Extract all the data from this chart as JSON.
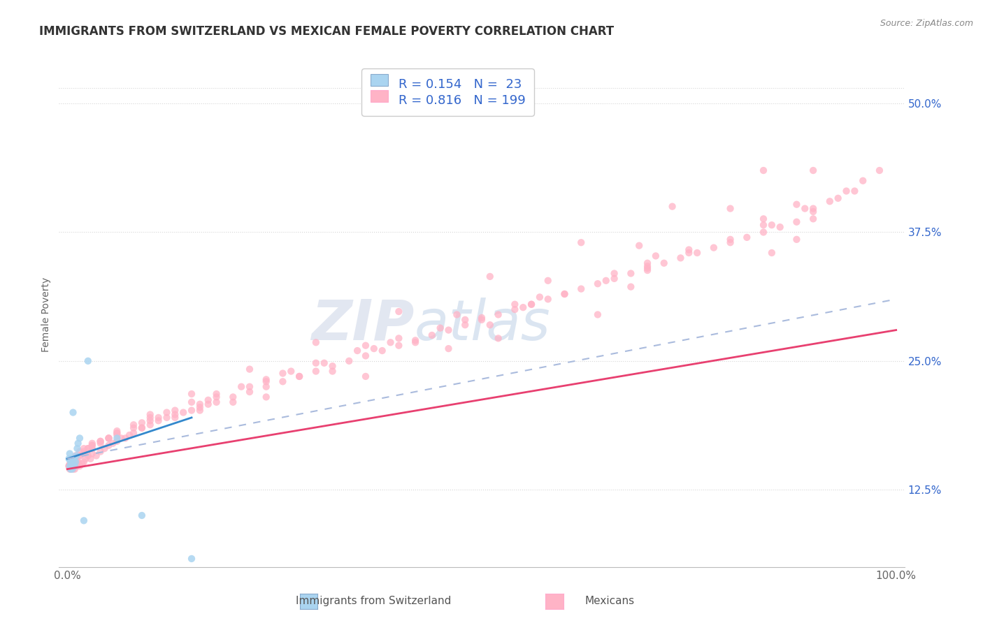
{
  "title": "IMMIGRANTS FROM SWITZERLAND VS MEXICAN FEMALE POVERTY CORRELATION CHART",
  "source": "Source: ZipAtlas.com",
  "ylabel": "Female Poverty",
  "watermark_zip": "ZIP",
  "watermark_atlas": "atlas",
  "legend_r1": "R = 0.154",
  "legend_n1": "N =  23",
  "legend_r2": "R = 0.816",
  "legend_n2": "N = 199",
  "legend_label1": "Immigrants from Switzerland",
  "legend_label2": "Mexicans",
  "yticks": [
    0.125,
    0.25,
    0.375,
    0.5
  ],
  "ytick_labels": [
    "12.5%",
    "25.0%",
    "37.5%",
    "50.0%"
  ],
  "grid_color": "#cccccc",
  "stat_color": "#3366cc",
  "background": "#ffffff",
  "swiss_x": [
    0.002,
    0.003,
    0.003,
    0.004,
    0.004,
    0.005,
    0.005,
    0.006,
    0.006,
    0.007,
    0.007,
    0.008,
    0.009,
    0.01,
    0.011,
    0.012,
    0.013,
    0.015,
    0.02,
    0.025,
    0.06,
    0.09,
    0.15
  ],
  "swiss_y": [
    0.155,
    0.148,
    0.16,
    0.145,
    0.152,
    0.155,
    0.148,
    0.152,
    0.145,
    0.15,
    0.2,
    0.155,
    0.148,
    0.152,
    0.158,
    0.165,
    0.17,
    0.175,
    0.095,
    0.25,
    0.175,
    0.1,
    0.058
  ],
  "mexican_x": [
    0.002,
    0.003,
    0.004,
    0.005,
    0.005,
    0.006,
    0.007,
    0.008,
    0.009,
    0.01,
    0.012,
    0.013,
    0.015,
    0.018,
    0.02,
    0.022,
    0.025,
    0.028,
    0.03,
    0.035,
    0.04,
    0.045,
    0.05,
    0.055,
    0.06,
    0.065,
    0.07,
    0.075,
    0.08,
    0.09,
    0.1,
    0.11,
    0.12,
    0.13,
    0.14,
    0.15,
    0.16,
    0.17,
    0.18,
    0.2,
    0.22,
    0.24,
    0.26,
    0.28,
    0.3,
    0.32,
    0.34,
    0.36,
    0.38,
    0.4,
    0.42,
    0.44,
    0.46,
    0.48,
    0.5,
    0.52,
    0.54,
    0.56,
    0.58,
    0.6,
    0.62,
    0.64,
    0.66,
    0.68,
    0.7,
    0.72,
    0.74,
    0.76,
    0.78,
    0.8,
    0.82,
    0.84,
    0.86,
    0.88,
    0.9,
    0.92,
    0.94,
    0.96,
    0.98,
    0.002,
    0.003,
    0.004,
    0.005,
    0.006,
    0.007,
    0.008,
    0.01,
    0.012,
    0.015,
    0.02,
    0.025,
    0.03,
    0.04,
    0.05,
    0.06,
    0.08,
    0.1,
    0.12,
    0.15,
    0.18,
    0.21,
    0.24,
    0.27,
    0.3,
    0.35,
    0.4,
    0.45,
    0.5,
    0.55,
    0.6,
    0.65,
    0.7,
    0.75,
    0.8,
    0.85,
    0.9,
    0.95,
    0.003,
    0.008,
    0.015,
    0.025,
    0.04,
    0.06,
    0.09,
    0.13,
    0.18,
    0.24,
    0.31,
    0.39,
    0.48,
    0.57,
    0.66,
    0.75,
    0.84,
    0.93,
    0.004,
    0.012,
    0.03,
    0.06,
    0.1,
    0.15,
    0.22,
    0.3,
    0.4,
    0.51,
    0.62,
    0.73,
    0.84,
    0.006,
    0.02,
    0.05,
    0.1,
    0.17,
    0.26,
    0.36,
    0.47,
    0.58,
    0.69,
    0.8,
    0.9,
    0.008,
    0.03,
    0.08,
    0.16,
    0.28,
    0.42,
    0.56,
    0.7,
    0.84,
    0.01,
    0.04,
    0.11,
    0.22,
    0.37,
    0.54,
    0.71,
    0.88,
    0.015,
    0.06,
    0.16,
    0.32,
    0.51,
    0.7,
    0.89,
    0.02,
    0.09,
    0.24,
    0.46,
    0.68,
    0.9,
    0.03,
    0.13,
    0.36,
    0.64,
    0.88,
    0.05,
    0.2,
    0.52,
    0.85
  ],
  "mexican_y": [
    0.148,
    0.15,
    0.145,
    0.148,
    0.152,
    0.15,
    0.148,
    0.152,
    0.145,
    0.15,
    0.148,
    0.152,
    0.148,
    0.15,
    0.152,
    0.155,
    0.158,
    0.155,
    0.16,
    0.158,
    0.162,
    0.165,
    0.168,
    0.17,
    0.172,
    0.175,
    0.175,
    0.178,
    0.18,
    0.185,
    0.188,
    0.192,
    0.195,
    0.198,
    0.2,
    0.202,
    0.205,
    0.208,
    0.21,
    0.215,
    0.22,
    0.225,
    0.23,
    0.235,
    0.24,
    0.245,
    0.25,
    0.255,
    0.26,
    0.265,
    0.27,
    0.275,
    0.28,
    0.285,
    0.29,
    0.295,
    0.3,
    0.305,
    0.31,
    0.315,
    0.32,
    0.325,
    0.33,
    0.335,
    0.34,
    0.345,
    0.35,
    0.355,
    0.36,
    0.365,
    0.37,
    0.375,
    0.38,
    0.385,
    0.395,
    0.405,
    0.415,
    0.425,
    0.435,
    0.148,
    0.145,
    0.15,
    0.152,
    0.148,
    0.145,
    0.15,
    0.155,
    0.152,
    0.158,
    0.16,
    0.165,
    0.165,
    0.17,
    0.175,
    0.18,
    0.188,
    0.195,
    0.2,
    0.21,
    0.218,
    0.225,
    0.232,
    0.24,
    0.248,
    0.26,
    0.272,
    0.282,
    0.292,
    0.302,
    0.315,
    0.328,
    0.342,
    0.355,
    0.368,
    0.382,
    0.398,
    0.415,
    0.148,
    0.152,
    0.158,
    0.165,
    0.172,
    0.18,
    0.19,
    0.202,
    0.215,
    0.23,
    0.248,
    0.268,
    0.29,
    0.312,
    0.335,
    0.358,
    0.382,
    0.408,
    0.15,
    0.158,
    0.168,
    0.182,
    0.198,
    0.218,
    0.242,
    0.268,
    0.298,
    0.332,
    0.365,
    0.4,
    0.435,
    0.152,
    0.162,
    0.175,
    0.192,
    0.212,
    0.238,
    0.265,
    0.295,
    0.328,
    0.362,
    0.398,
    0.435,
    0.155,
    0.168,
    0.185,
    0.208,
    0.235,
    0.268,
    0.305,
    0.345,
    0.388,
    0.158,
    0.172,
    0.195,
    0.225,
    0.262,
    0.305,
    0.352,
    0.402,
    0.162,
    0.178,
    0.202,
    0.24,
    0.285,
    0.338,
    0.398,
    0.165,
    0.185,
    0.215,
    0.262,
    0.322,
    0.388,
    0.17,
    0.195,
    0.235,
    0.295,
    0.368,
    0.175,
    0.21,
    0.272,
    0.355
  ]
}
